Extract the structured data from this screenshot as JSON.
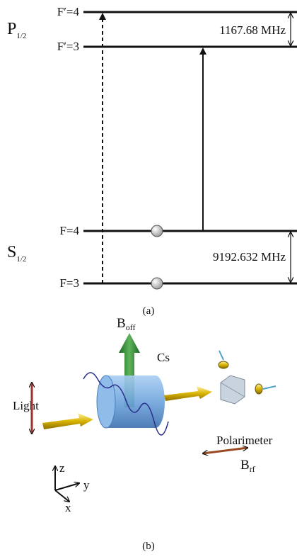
{
  "panel_a": {
    "states": [
      {
        "symbol": "P",
        "subscript": "1/2"
      },
      {
        "symbol": "S",
        "subscript": "1/2"
      }
    ],
    "levels": [
      "F′=4",
      "F′=3",
      "F=4",
      "F=3"
    ],
    "splittings": [
      "1167.68 MHz",
      "9192.632 MHz"
    ],
    "caption": "(a)"
  },
  "panel_b": {
    "b_off": {
      "symbol": "B",
      "subscript": "off"
    },
    "b_rf": {
      "symbol": "B",
      "subscript": "rf"
    },
    "cs": "Cs",
    "light": "Light",
    "polarimeter": "Polarimeter",
    "axes": {
      "z": "z",
      "y": "y",
      "x": "x"
    },
    "caption": "(b)"
  }
}
